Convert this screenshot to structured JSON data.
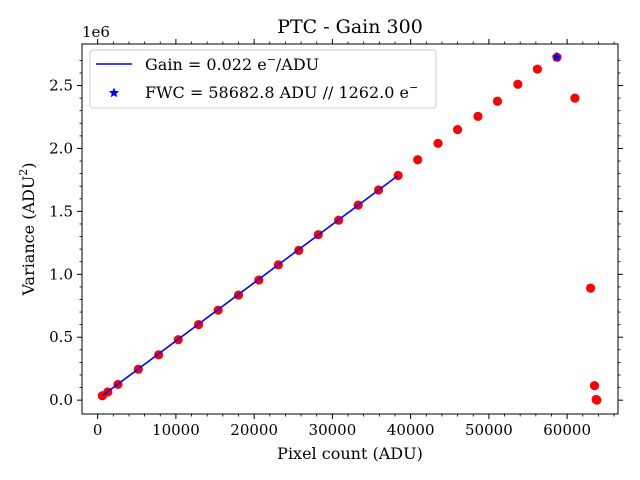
{
  "chart_data": {
    "type": "scatter",
    "title": "PTC - Gain 300",
    "xlabel": "Pixel count (ADU)",
    "ylabel_main": "Variance (ADU",
    "ylabel_sup": "2",
    "ylabel_end": ")",
    "offset_text": "1e6",
    "xlim": [
      -2000,
      66500
    ],
    "ylim": [
      -0.11,
      2.83
    ],
    "y_scale": 1000000,
    "x_ticks": [
      0,
      10000,
      20000,
      30000,
      40000,
      50000,
      60000
    ],
    "x_tick_labels": [
      "0",
      "10000",
      "20000",
      "30000",
      "40000",
      "50000",
      "60000"
    ],
    "y_ticks": [
      0.0,
      0.5,
      1.0,
      1.5,
      2.0,
      2.5
    ],
    "y_tick_labels": [
      "0.0",
      "0.5",
      "1.0",
      "1.5",
      "2.0",
      "2.5"
    ],
    "legend_position": "top-left",
    "grid": false,
    "colors": {
      "points": "#ff0000",
      "fit": "#0000ff",
      "fwc_marker": "#0000ff"
    },
    "series": [
      {
        "name": "",
        "kind": "scatter",
        "x": [
          600,
          1300,
          2600,
          5200,
          7800,
          10300,
          12900,
          15400,
          18000,
          20600,
          23100,
          25700,
          28200,
          30800,
          33300,
          35900,
          38400,
          40900,
          43500,
          46000,
          48600,
          51100,
          53700,
          56200,
          58700,
          61000,
          63000,
          63500,
          63700,
          63800
        ],
        "y": [
          0.035,
          0.065,
          0.125,
          0.245,
          0.36,
          0.48,
          0.6,
          0.715,
          0.835,
          0.955,
          1.075,
          1.19,
          1.315,
          1.43,
          1.55,
          1.67,
          1.785,
          1.91,
          2.04,
          2.15,
          2.255,
          2.375,
          2.51,
          2.63,
          2.725,
          2.4,
          0.89,
          0.115,
          0.005,
          0.0
        ]
      },
      {
        "name": "Gain = 0.022 e⁻/ADU",
        "kind": "line",
        "x": [
          600,
          38400
        ],
        "y": [
          0.035,
          1.785
        ]
      },
      {
        "name": "FWC = 58682.8 ADU // 1262.0 e⁻",
        "kind": "marker",
        "x": [
          58682.8
        ],
        "y": [
          2.725
        ]
      }
    ],
    "legend": {
      "gain_main": "Gain = 0.022 e",
      "gain_sup": "−",
      "gain_end": "/ADU",
      "fwc_main": "FWC = 58682.8 ADU // 1262.0 e",
      "fwc_sup": "−"
    }
  }
}
